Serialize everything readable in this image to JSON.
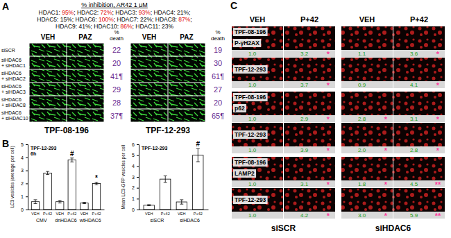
{
  "panel_labels": [
    "A",
    "B",
    "C"
  ],
  "panel_a": {
    "heading": "% inhibition, AR42 1 μM",
    "inhibition_lines": [
      [
        {
          "text": "HDAC1: "
        },
        {
          "text": "95%",
          "color": "#e00000"
        },
        {
          "text": "; HDAC2: "
        },
        {
          "text": "72%",
          "color": "#e00000"
        },
        {
          "text": "; HDAC3: "
        },
        {
          "text": "93%",
          "color": "#e00000"
        },
        {
          "text": "; HDAC4: 21%;"
        }
      ],
      [
        {
          "text": "HDAC5: 15%; HDAC6: "
        },
        {
          "text": "100%",
          "color": "#e00000"
        },
        {
          "text": "; HDAC7: 22%; HDAC8: "
        },
        {
          "text": "87%",
          "color": "#e00000"
        },
        {
          "text": ";"
        }
      ],
      [
        {
          "text": "HDAC9: 41%; HDAC10: "
        },
        {
          "text": "86%",
          "color": "#e00000"
        },
        {
          "text": "; HDAC11: 23%"
        }
      ]
    ],
    "column_headers": [
      "VEH",
      "PAZ"
    ],
    "death_header": [
      "%",
      "death"
    ],
    "row_labels": [
      [
        "siSCR"
      ],
      [
        "siHDAC6",
        "+ siHDAC1"
      ],
      [
        "siHDAC6",
        "+ siHDAC2"
      ],
      [
        "siHDAC6",
        "+ siHDAC3"
      ],
      [
        "siHDAC6",
        "+ siHDAC8"
      ],
      [
        "siHDAC6",
        "+ siHDAC10"
      ]
    ],
    "cell_lines": [
      {
        "name": "TPF-08-196",
        "death": [
          "22",
          "20",
          "41¶",
          "29",
          "28",
          "37¶"
        ]
      },
      {
        "name": "TPF-12-293",
        "death": [
          "19",
          "30",
          "61¶",
          "27",
          "20",
          "65¶"
        ]
      }
    ]
  },
  "chart_data": [
    {
      "type": "bar",
      "title": "TPF-12-293",
      "subtitle": "6h",
      "y_label": "LC3 vesicles (average per cell)",
      "categories": [
        "VEH",
        "P+42",
        "VEH",
        "P+42",
        "VEH",
        "P+42"
      ],
      "group_labels": [
        "CMV",
        "dnHDAC6",
        "wtHDAC6"
      ],
      "values": [
        0.6,
        2.8,
        0.6,
        3.8,
        0.5,
        2.0
      ],
      "errors": [
        0.15,
        0.12,
        0.1,
        0.15,
        0.05,
        0.1
      ],
      "significance": [
        null,
        null,
        null,
        "#",
        null,
        "*"
      ],
      "color": "#ffffff",
      "ylim": [
        0,
        5
      ],
      "yticks": [
        0,
        1,
        2,
        3,
        4,
        5
      ],
      "grid": false
    },
    {
      "type": "bar",
      "title": "TPF-12-293",
      "y_label": "Mean LC3-GFP vesicles per cell",
      "categories": [
        "VEH",
        "P+42",
        "VEH",
        "P+42"
      ],
      "group_labels": [
        "siSCR",
        "siHDAC6"
      ],
      "values": [
        0.4,
        2.8,
        0.7,
        5.0
      ],
      "errors": [
        0.05,
        0.3,
        0.2,
        0.6
      ],
      "significance": [
        null,
        null,
        null,
        "#"
      ],
      "color": "#ffffff",
      "ylim": [
        0,
        6
      ],
      "yticks": [
        0,
        1,
        2,
        3,
        4,
        5,
        6
      ],
      "grid": false
    }
  ],
  "panel_c": {
    "columns": [
      "VEH",
      "P+42",
      "VEH",
      "P+42"
    ],
    "groups": [
      "siSCR",
      "siHDAC6"
    ],
    "markers": [
      {
        "name": "P-γH2AX",
        "rows": [
          {
            "cell_line": "TPF-08-196",
            "values": [
              "1.0",
              "3.2",
              "1.1",
              "3.6"
            ],
            "stars": [
              null,
              "*",
              null,
              "*"
            ]
          },
          {
            "cell_line": "TPF-12-293",
            "values": [
              "1.0",
              "3.7",
              "0.9",
              "4.1"
            ],
            "stars": [
              null,
              "*",
              null,
              "*"
            ]
          }
        ]
      },
      {
        "name": "p62",
        "rows": [
          {
            "cell_line": "TPF-08-196",
            "values": [
              "1.0",
              "2.9",
              "2.8",
              "3.1"
            ],
            "stars": [
              null,
              "*",
              "*",
              "*"
            ]
          },
          {
            "cell_line": "TPF-12-293",
            "values": [
              "1.0",
              "3.9",
              "2.0",
              "2.8"
            ],
            "stars": [
              null,
              "*",
              "*",
              "*"
            ]
          }
        ]
      },
      {
        "name": "LAMP2",
        "rows": [
          {
            "cell_line": "TPF-08-196",
            "values": [
              "1.0",
              "3.1",
              "1.8",
              "4.5"
            ],
            "stars": [
              null,
              "*",
              "*",
              "**"
            ]
          },
          {
            "cell_line": "TPF-12-293",
            "values": [
              "1.0",
              "4.2",
              "3.0",
              "5.9"
            ],
            "stars": [
              null,
              "*",
              "*",
              "**"
            ]
          }
        ]
      }
    ]
  }
}
